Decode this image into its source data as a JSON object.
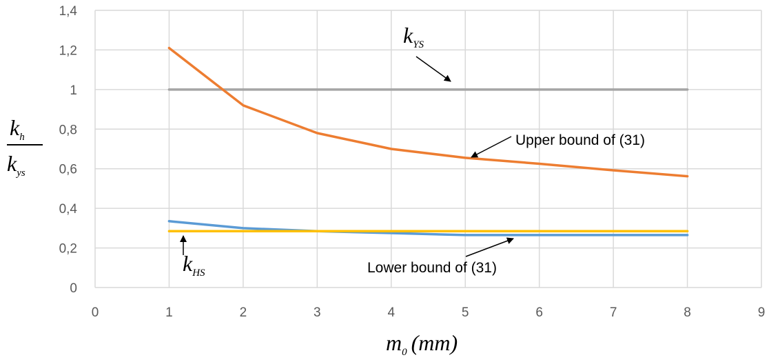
{
  "chart_data": {
    "type": "line",
    "title": "",
    "xlabel": {
      "main": "m",
      "sub": "0",
      "unit": "(mm)"
    },
    "ylabel": {
      "numerator": "k",
      "numerator_sub": "h",
      "denominator": "k",
      "denominator_sub": "ys"
    },
    "xlim": [
      0,
      9
    ],
    "ylim": [
      0,
      1.4
    ],
    "x_ticks": [
      "0",
      "1",
      "2",
      "3",
      "4",
      "5",
      "6",
      "7",
      "8",
      "9"
    ],
    "y_ticks": [
      "0",
      "0,2",
      "0,4",
      "0,6",
      "0,8",
      "1",
      "1,2",
      "1,4"
    ],
    "grid": true,
    "x": [
      1,
      2,
      3,
      4,
      5,
      6,
      7,
      8
    ],
    "series": [
      {
        "key": "kys",
        "color": "#A5A5A5",
        "values": [
          1,
          1,
          1,
          1,
          1,
          1,
          1,
          1
        ]
      },
      {
        "key": "upper",
        "color": "#ED7D31",
        "values": [
          1.21,
          0.92,
          0.78,
          0.7,
          0.655,
          0.625,
          0.592,
          0.562
        ]
      },
      {
        "key": "lower",
        "color": "#5B9BD5",
        "values": [
          0.335,
          0.3,
          0.285,
          0.275,
          0.265,
          0.265,
          0.265,
          0.265
        ]
      },
      {
        "key": "khs",
        "color": "#FFC000",
        "values": [
          0.285,
          0.285,
          0.285,
          0.285,
          0.285,
          0.285,
          0.285,
          0.285
        ]
      }
    ],
    "annotations": {
      "kys": {
        "main": "k",
        "sub": "YS"
      },
      "khs": {
        "main": "k",
        "sub": "HS"
      },
      "upper": "Upper bound of (31)",
      "lower": "Lower bound of (31)"
    }
  }
}
